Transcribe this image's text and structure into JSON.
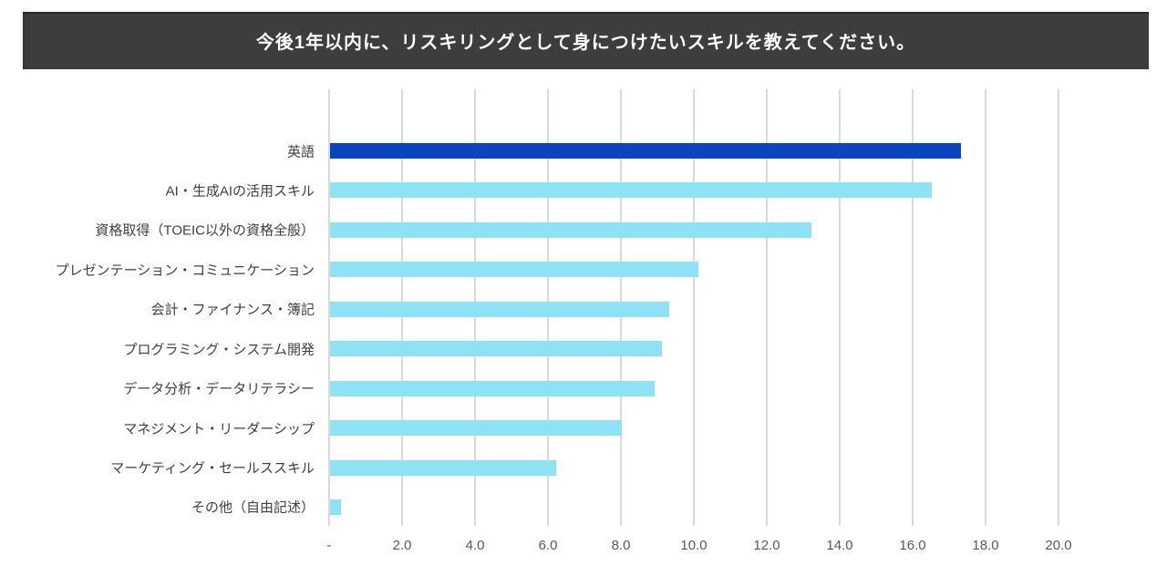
{
  "header": {
    "title": "今後1年以内に、リスキリングとして身につけたいスキルを教えてください。",
    "background_color": "#3d3d3d",
    "text_color": "#ffffff"
  },
  "chart_data": {
    "type": "bar",
    "orientation": "horizontal",
    "title": "今後1年以内に、リスキリングとして身につけたいスキルを教えてください。",
    "xlabel": "",
    "ylabel": "",
    "categories": [
      "英語",
      "AI・生成AIの活用スキル",
      "資格取得（TOEIC以外の資格全般）",
      "プレゼンテーション・コミュニケーション",
      "会計・ファイナンス・簿記",
      "プログラミング・システム開発",
      "データ分析・データリテラシー",
      "マネジメント・リーダーシップ",
      "マーケティング・セールススキル",
      "その他（自由記述）"
    ],
    "values": [
      17.3,
      16.5,
      13.2,
      10.1,
      9.3,
      9.1,
      8.9,
      8.0,
      6.2,
      0.3
    ],
    "xlim": [
      0,
      20
    ],
    "x_ticks": [
      "-",
      "2.0",
      "4.0",
      "6.0",
      "8.0",
      "10.0",
      "12.0",
      "14.0",
      "16.0",
      "18.0",
      "20.0"
    ],
    "x_tick_values": [
      0,
      2,
      4,
      6,
      8,
      10,
      12,
      14,
      16,
      18,
      20
    ],
    "grid": "vertical",
    "legend": "none",
    "highlight_index": 0,
    "colors": {
      "highlight_bar": "#0a44be",
      "default_bar": "#8ee2f5",
      "gridline": "#d9d9d9",
      "category_label": "#404040",
      "tick_label": "#595959"
    }
  }
}
